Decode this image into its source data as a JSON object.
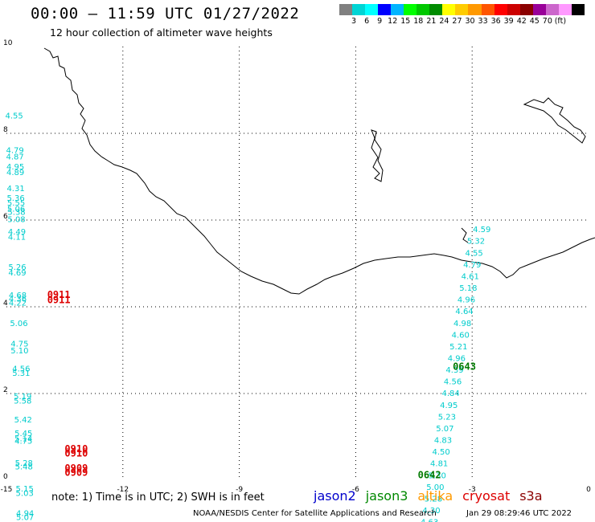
{
  "header": {
    "title": "00:00 – 11:59 UTC 01/27/2022",
    "subtitle": "12 hour collection of altimeter wave heights"
  },
  "legend": {
    "colors": [
      "#808080",
      "#00d4d4",
      "#00ffff",
      "#0000ff",
      "#00b4ff",
      "#00ff00",
      "#00c800",
      "#008c00",
      "#ffff00",
      "#ffcc00",
      "#ff9900",
      "#ff5500",
      "#ff0000",
      "#cc0000",
      "#8b0000",
      "#990099",
      "#cc66cc",
      "#ff99ff",
      "#000000"
    ],
    "labels": [
      "3",
      "6",
      "9",
      "12",
      "15",
      "18",
      "21",
      "24",
      "27",
      "30",
      "33",
      "36",
      "39",
      "42",
      "45",
      "70",
      "(ft)"
    ]
  },
  "axes": {
    "x_ticks": [
      "-15",
      "-12",
      "-9",
      "-6",
      "-3",
      "0"
    ],
    "y_ticks": [
      "0",
      "2",
      "4",
      "6",
      "8",
      "10"
    ]
  },
  "tracks": [
    {
      "mission": "jason3",
      "color": "#00cccc",
      "label_color": "#007a00",
      "pass_labels": [
        {
          "text": "0642",
          "lon": -4.1,
          "lat": 0.05
        },
        {
          "text": "0643",
          "lon": -3.2,
          "lat": 2.55
        }
      ],
      "points": [
        {
          "lon": -2.75,
          "lat": 5.72,
          "v": "4.59"
        },
        {
          "lon": -2.9,
          "lat": 5.45,
          "v": "5.32"
        },
        {
          "lon": -2.95,
          "lat": 5.18,
          "v": "4.55"
        },
        {
          "lon": -3.0,
          "lat": 4.91,
          "v": "4.79"
        },
        {
          "lon": -3.05,
          "lat": 4.64,
          "v": "4.61"
        },
        {
          "lon": -3.1,
          "lat": 4.37,
          "v": "5.18"
        },
        {
          "lon": -3.15,
          "lat": 4.1,
          "v": "4.96"
        },
        {
          "lon": -3.2,
          "lat": 3.83,
          "v": "4.64"
        },
        {
          "lon": -3.25,
          "lat": 3.56,
          "v": "4.98"
        },
        {
          "lon": -3.3,
          "lat": 3.29,
          "v": "4.60"
        },
        {
          "lon": -3.35,
          "lat": 3.02,
          "v": "5.21"
        },
        {
          "lon": -3.4,
          "lat": 2.75,
          "v": "4.96"
        },
        {
          "lon": -3.45,
          "lat": 2.48,
          "v": "4.39"
        },
        {
          "lon": -3.5,
          "lat": 2.21,
          "v": "4.56"
        },
        {
          "lon": -3.55,
          "lat": 1.94,
          "v": "4.84"
        },
        {
          "lon": -3.6,
          "lat": 1.67,
          "v": "4.95"
        },
        {
          "lon": -3.65,
          "lat": 1.4,
          "v": "5.23"
        },
        {
          "lon": -3.7,
          "lat": 1.13,
          "v": "5.07"
        },
        {
          "lon": -3.75,
          "lat": 0.86,
          "v": "4.83"
        },
        {
          "lon": -3.8,
          "lat": 0.59,
          "v": "4.50"
        },
        {
          "lon": -3.85,
          "lat": 0.32,
          "v": "4.81"
        },
        {
          "lon": -3.9,
          "lat": 0.05,
          "v": "5.30"
        },
        {
          "lon": -3.95,
          "lat": -0.22,
          "v": "5.00"
        },
        {
          "lon": -4.0,
          "lat": -0.49,
          "v": "5.28"
        },
        {
          "lon": -4.05,
          "lat": -0.76,
          "v": "4.30"
        },
        {
          "lon": -4.1,
          "lat": -1.03,
          "v": "4.63"
        }
      ]
    },
    {
      "mission": "cryosat",
      "color": "#00cccc",
      "label_color": "#dd0000",
      "pass_labels": [
        {
          "text": "0911",
          "lon": -13.65,
          "lat": 4.2
        },
        {
          "text": "0911",
          "lon": -13.65,
          "lat": 4.08
        },
        {
          "text": "0910",
          "lon": -13.2,
          "lat": 0.65
        },
        {
          "text": "0910",
          "lon": -13.2,
          "lat": 0.55
        },
        {
          "text": "0909",
          "lon": -13.2,
          "lat": 0.2
        },
        {
          "text": "0909",
          "lon": -13.2,
          "lat": 0.1
        }
      ],
      "points": [
        {
          "lon": -14.8,
          "lat": 8.34,
          "v": "4.55"
        },
        {
          "lon": -14.78,
          "lat": 7.55,
          "v": "4.79"
        },
        {
          "lon": -14.78,
          "lat": 7.4,
          "v": "4.87"
        },
        {
          "lon": -14.77,
          "lat": 7.17,
          "v": "4.95"
        },
        {
          "lon": -14.77,
          "lat": 7.04,
          "v": "4.89"
        },
        {
          "lon": -14.76,
          "lat": 6.67,
          "v": "4.31"
        },
        {
          "lon": -14.76,
          "lat": 6.44,
          "v": "5.36"
        },
        {
          "lon": -14.75,
          "lat": 6.33,
          "v": "5.55"
        },
        {
          "lon": -14.75,
          "lat": 6.19,
          "v": "5.06"
        },
        {
          "lon": -14.74,
          "lat": 6.12,
          "v": "5.38"
        },
        {
          "lon": -14.74,
          "lat": 5.95,
          "v": "5.08"
        },
        {
          "lon": -14.73,
          "lat": 5.67,
          "v": "4.49"
        },
        {
          "lon": -14.73,
          "lat": 5.55,
          "v": "4.11"
        },
        {
          "lon": -14.72,
          "lat": 4.85,
          "v": "5.26"
        },
        {
          "lon": -14.72,
          "lat": 4.72,
          "v": "4.69"
        },
        {
          "lon": -14.71,
          "lat": 4.2,
          "v": "4.68"
        },
        {
          "lon": -14.71,
          "lat": 4.12,
          "v": "4.36"
        },
        {
          "lon": -14.71,
          "lat": 4.03,
          "v": "4.22"
        },
        {
          "lon": -14.68,
          "lat": 3.56,
          "v": "5.06"
        },
        {
          "lon": -14.66,
          "lat": 3.08,
          "v": "4.75"
        },
        {
          "lon": -14.66,
          "lat": 2.93,
          "v": "5.10"
        },
        {
          "lon": -14.62,
          "lat": 2.51,
          "v": "4.56"
        },
        {
          "lon": -14.62,
          "lat": 2.41,
          "v": "5.31"
        },
        {
          "lon": -14.58,
          "lat": 1.87,
          "v": "5.19"
        },
        {
          "lon": -14.58,
          "lat": 1.77,
          "v": "5.58"
        },
        {
          "lon": -14.57,
          "lat": 1.33,
          "v": "5.42"
        },
        {
          "lon": -14.56,
          "lat": 1.02,
          "v": "5.45"
        },
        {
          "lon": -14.56,
          "lat": 0.9,
          "v": "5.14"
        },
        {
          "lon": -14.56,
          "lat": 0.84,
          "v": "4.75"
        },
        {
          "lon": -14.55,
          "lat": 0.33,
          "v": "5.28"
        },
        {
          "lon": -14.55,
          "lat": 0.25,
          "v": "5.48"
        },
        {
          "lon": -14.53,
          "lat": -0.26,
          "v": "5.15"
        },
        {
          "lon": -14.53,
          "lat": -0.36,
          "v": "5.03"
        },
        {
          "lon": -14.52,
          "lat": -0.82,
          "v": "4.94"
        },
        {
          "lon": -14.52,
          "lat": -0.92,
          "v": "5.07"
        }
      ]
    }
  ],
  "footer": {
    "note": "note: 1) Time is in UTC; 2) SWH is in feet",
    "missions": [
      {
        "name": "jason2",
        "color": "#0000cc"
      },
      {
        "name": "jason3",
        "color": "#008800"
      },
      {
        "name": "altika",
        "color": "#ff9900"
      },
      {
        "name": "cryosat",
        "color": "#dd0000"
      },
      {
        "name": "s3a",
        "color": "#8b0000"
      }
    ],
    "credit": "NOAA/NESDIS Center for Satellite Applications and Research",
    "stamp": "Jan 29 08:29:46 UTC 2022"
  }
}
